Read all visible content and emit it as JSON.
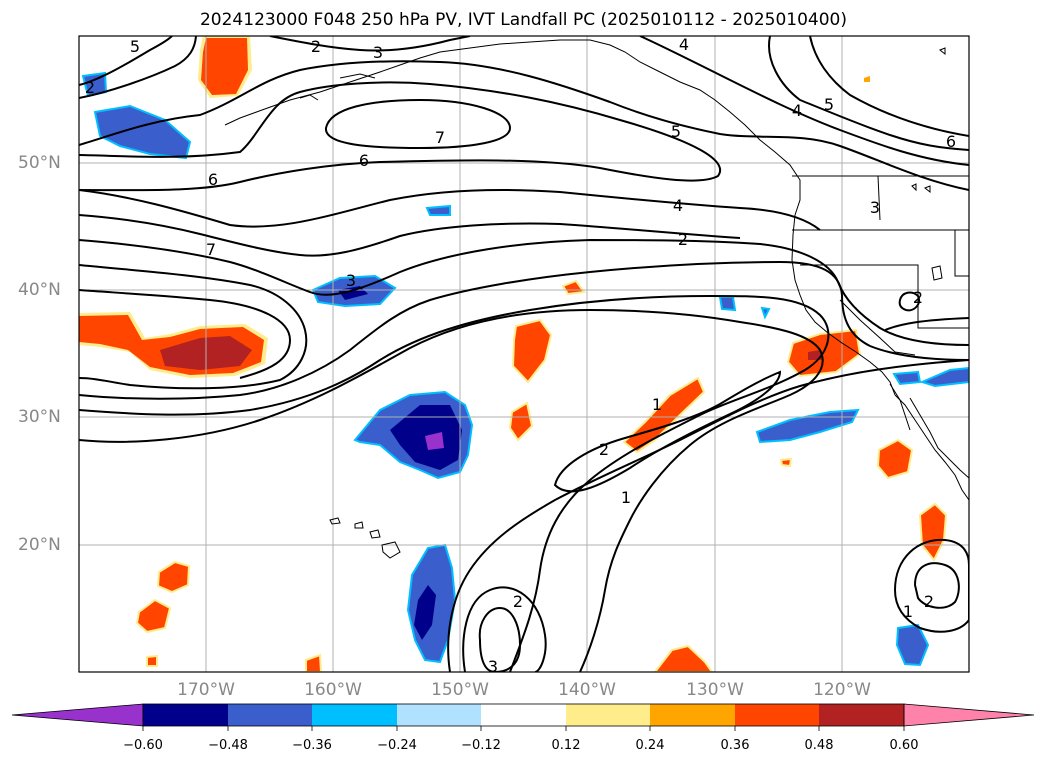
{
  "title": "2024123000 F048 250 hPa PV, IVT Landfall PC (2025010112 - 2025010400)",
  "map": {
    "lon_labels": [
      "170°W",
      "160°W",
      "150°W",
      "140°W",
      "130°W",
      "120°W"
    ],
    "lat_labels": [
      "50°N",
      "40°N",
      "30°N",
      "20°N"
    ],
    "contour_labels": [
      "5",
      "2",
      "3",
      "4",
      "5",
      "4",
      "5",
      "6",
      "7",
      "6",
      "6",
      "7",
      "4",
      "2",
      "3",
      "3",
      "1",
      "2",
      "1",
      "2",
      "2",
      "2",
      "1",
      "2",
      "3"
    ]
  },
  "colorbar": {
    "ticks": [
      "−0.60",
      "−0.48",
      "−0.36",
      "−0.24",
      "−0.12",
      "0.12",
      "0.24",
      "0.36",
      "0.48",
      "0.60"
    ],
    "colors": [
      "#9932cc",
      "#00008b",
      "#3a5fcd",
      "#00bfff",
      "#b0e2ff",
      "#ffffff",
      "#ffec8b",
      "#ffa500",
      "#ff4500",
      "#b22222",
      "#ff82ab"
    ]
  }
}
